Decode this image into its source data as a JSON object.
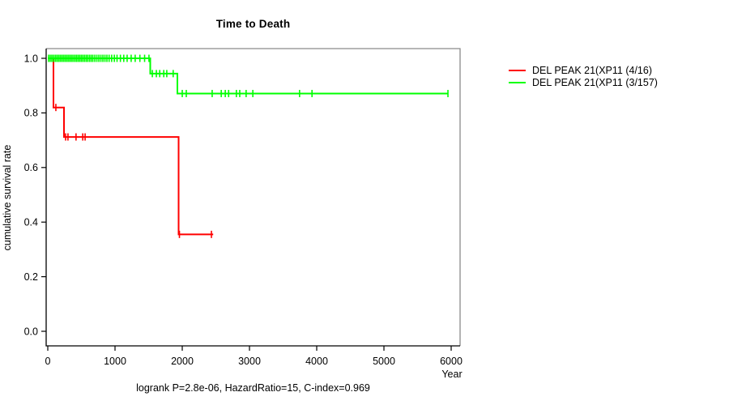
{
  "chart_data": {
    "type": "line",
    "subtype": "kaplan-meier-step",
    "title": "Time to Death",
    "xlabel": "Year",
    "ylabel": "cumulative survival rate",
    "annotation": "logrank P=2.8e-06, HazardRatio=15, C-index=0.969",
    "grid": false,
    "legend_position": "right-outside",
    "x_axis": {
      "min": 0,
      "max": 6350,
      "ticks": [
        0,
        1000,
        2000,
        3000,
        4000,
        5000,
        6000
      ]
    },
    "y_axis": {
      "min": 0.0,
      "max": 1.0,
      "ticks": [
        0.0,
        0.2,
        0.4,
        0.6,
        0.8,
        1.0
      ]
    },
    "series": [
      {
        "name": "DEL PEAK 21(XP11 (4/16)",
        "color": "#ff0000",
        "points": [
          [
            0,
            1.0
          ],
          [
            84,
            1.0
          ],
          [
            84,
            0.82
          ],
          [
            241,
            0.82
          ],
          [
            241,
            0.712
          ],
          [
            1946,
            0.712
          ],
          [
            1946,
            0.355
          ],
          [
            2460,
            0.355
          ]
        ],
        "censor_marks": [
          [
            120,
            0.82
          ],
          [
            265,
            0.712
          ],
          [
            300,
            0.712
          ],
          [
            420,
            0.712
          ],
          [
            520,
            0.712
          ],
          [
            555,
            0.712
          ],
          [
            1958,
            0.355
          ],
          [
            2434,
            0.355
          ]
        ]
      },
      {
        "name": "DEL PEAK 21(XP11 (3/157)",
        "color": "#00ff00",
        "points": [
          [
            0,
            1.0
          ],
          [
            1524,
            1.0
          ],
          [
            1524,
            0.944
          ],
          [
            1928,
            0.944
          ],
          [
            1928,
            0.871
          ],
          [
            5952,
            0.871
          ]
        ],
        "censor_marks": [
          [
            12,
            1.0
          ],
          [
            36,
            1.0
          ],
          [
            60,
            1.0
          ],
          [
            84,
            1.0
          ],
          [
            110,
            1.0
          ],
          [
            134,
            1.0
          ],
          [
            158,
            1.0
          ],
          [
            182,
            1.0
          ],
          [
            206,
            1.0
          ],
          [
            230,
            1.0
          ],
          [
            254,
            1.0
          ],
          [
            278,
            1.0
          ],
          [
            302,
            1.0
          ],
          [
            326,
            1.0
          ],
          [
            350,
            1.0
          ],
          [
            374,
            1.0
          ],
          [
            400,
            1.0
          ],
          [
            424,
            1.0
          ],
          [
            448,
            1.0
          ],
          [
            472,
            1.0
          ],
          [
            496,
            1.0
          ],
          [
            520,
            1.0
          ],
          [
            545,
            1.0
          ],
          [
            570,
            1.0
          ],
          [
            594,
            1.0
          ],
          [
            620,
            1.0
          ],
          [
            645,
            1.0
          ],
          [
            670,
            1.0
          ],
          [
            700,
            1.0
          ],
          [
            730,
            1.0
          ],
          [
            760,
            1.0
          ],
          [
            790,
            1.0
          ],
          [
            820,
            1.0
          ],
          [
            850,
            1.0
          ],
          [
            880,
            1.0
          ],
          [
            912,
            1.0
          ],
          [
            950,
            1.0
          ],
          [
            990,
            1.0
          ],
          [
            1030,
            1.0
          ],
          [
            1080,
            1.0
          ],
          [
            1130,
            1.0
          ],
          [
            1180,
            1.0
          ],
          [
            1240,
            1.0
          ],
          [
            1300,
            1.0
          ],
          [
            1370,
            1.0
          ],
          [
            1440,
            1.0
          ],
          [
            1505,
            1.0
          ],
          [
            1555,
            0.944
          ],
          [
            1615,
            0.944
          ],
          [
            1665,
            0.944
          ],
          [
            1725,
            0.944
          ],
          [
            1770,
            0.944
          ],
          [
            1865,
            0.944
          ],
          [
            2000,
            0.871
          ],
          [
            2060,
            0.871
          ],
          [
            2445,
            0.871
          ],
          [
            2580,
            0.871
          ],
          [
            2640,
            0.871
          ],
          [
            2690,
            0.871
          ],
          [
            2805,
            0.871
          ],
          [
            2855,
            0.871
          ],
          [
            2950,
            0.871
          ],
          [
            3050,
            0.871
          ],
          [
            3745,
            0.871
          ],
          [
            3930,
            0.871
          ],
          [
            5952,
            0.871
          ]
        ]
      }
    ]
  },
  "colors": {
    "background": "#ffffff",
    "axis": "#000000",
    "box": "#8a8a8a",
    "text": "#000000",
    "series_red": "#ff0000",
    "series_green": "#00ff00"
  }
}
